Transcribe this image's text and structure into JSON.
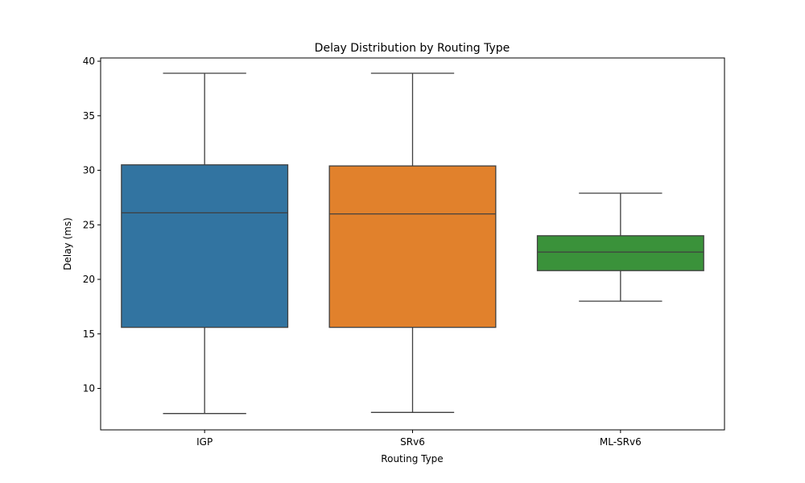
{
  "chart_data": {
    "type": "box",
    "title": "Delay Distribution by Routing Type",
    "xlabel": "Routing Type",
    "ylabel": "Delay (ms)",
    "ylim": [
      6.2,
      40.3
    ],
    "yticks": [
      10,
      15,
      20,
      25,
      30,
      35,
      40
    ],
    "grid": false,
    "categories": [
      "IGP",
      "SRv6",
      "ML-SRv6"
    ],
    "boxes": [
      {
        "category": "IGP",
        "whisker_low": 7.7,
        "q1": 15.6,
        "median": 26.1,
        "q3": 30.5,
        "whisker_high": 38.9,
        "color": "#3274a1"
      },
      {
        "category": "SRv6",
        "whisker_low": 7.8,
        "q1": 15.6,
        "median": 26.0,
        "q3": 30.4,
        "whisker_high": 38.9,
        "color": "#e1812c"
      },
      {
        "category": "ML-SRv6",
        "whisker_low": 18.0,
        "q1": 20.8,
        "median": 22.5,
        "q3": 24.0,
        "whisker_high": 27.9,
        "color": "#3a923a"
      }
    ],
    "line_color": "#3f3f3f"
  }
}
